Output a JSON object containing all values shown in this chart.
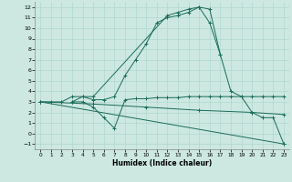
{
  "xlabel": "Humidex (Indice chaleur)",
  "xlim": [
    -0.5,
    23.5
  ],
  "ylim": [
    -1.5,
    12.5
  ],
  "xticks": [
    0,
    1,
    2,
    3,
    4,
    5,
    6,
    7,
    8,
    9,
    10,
    11,
    12,
    13,
    14,
    15,
    16,
    17,
    18,
    19,
    20,
    21,
    22,
    23
  ],
  "yticks": [
    -1,
    0,
    1,
    2,
    3,
    4,
    5,
    6,
    7,
    8,
    9,
    10,
    11,
    12
  ],
  "bg_color": "#cce8e0",
  "line_color": "#1a6b5a",
  "lines": [
    {
      "x": [
        0,
        1,
        2,
        3,
        4,
        5,
        12,
        13,
        14,
        15,
        16,
        17,
        18,
        19,
        20,
        21,
        22,
        23
      ],
      "y": [
        3,
        3,
        3,
        3.5,
        3.5,
        3.5,
        11.2,
        11.5,
        11.8,
        12,
        11.8,
        7.5,
        4,
        3.5,
        2,
        1.5,
        1.5,
        -1
      ]
    },
    {
      "x": [
        3,
        4,
        5,
        6,
        7,
        8,
        9,
        10,
        11,
        12,
        13,
        14,
        15,
        16,
        17
      ],
      "y": [
        3,
        3.5,
        3.2,
        3.2,
        3.5,
        5.5,
        7,
        8.5,
        10.5,
        11,
        11.2,
        11.5,
        12,
        10.5,
        7.5
      ]
    },
    {
      "x": [
        3,
        4,
        5,
        6,
        7,
        8,
        9,
        10,
        11,
        12,
        13,
        14,
        15,
        16,
        17,
        18,
        19,
        20,
        21,
        22,
        23
      ],
      "y": [
        3,
        3,
        2.5,
        1.5,
        0.5,
        3.2,
        3.3,
        3.3,
        3.4,
        3.4,
        3.4,
        3.5,
        3.5,
        3.5,
        3.5,
        3.5,
        3.5,
        3.5,
        3.5,
        3.5,
        3.5
      ]
    },
    {
      "x": [
        0,
        23
      ],
      "y": [
        3,
        -1
      ]
    },
    {
      "x": [
        0,
        5,
        10,
        15,
        20,
        23
      ],
      "y": [
        3,
        2.8,
        2.5,
        2.2,
        2.0,
        1.8
      ]
    }
  ]
}
